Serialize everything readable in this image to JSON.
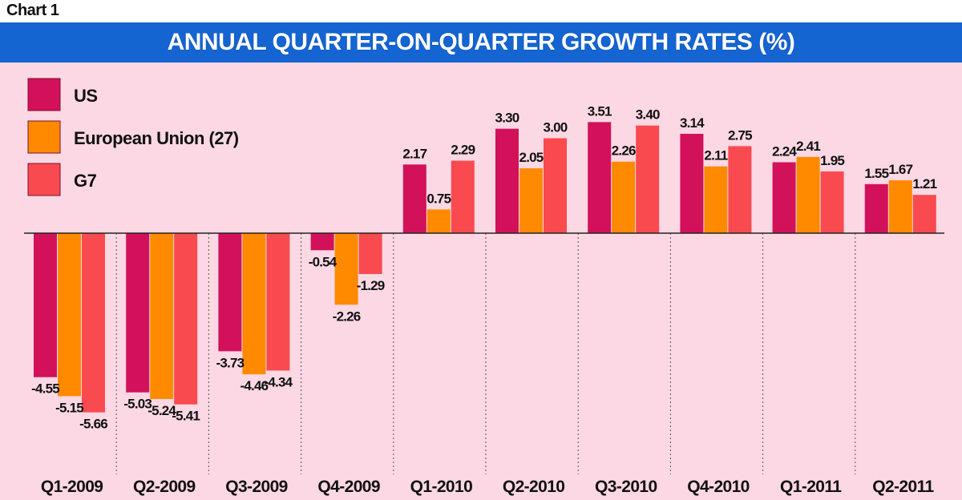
{
  "header": {
    "chart_label": "Chart 1",
    "title": "ANNUAL QUARTER-ON-QUARTER GROWTH RATES (%)"
  },
  "colors": {
    "title_bar": "#1464d2",
    "background": "#fbd8e4",
    "us": "#d3115a",
    "eu": "#ff8a00",
    "g7": "#f94a4f"
  },
  "chart_data": {
    "type": "bar",
    "title": "ANNUAL QUARTER-ON-QUARTER GROWTH RATES (%)",
    "categories": [
      "Q1-2009",
      "Q2-2009",
      "Q3-2009",
      "Q4-2009",
      "Q1-2010",
      "Q2-2010",
      "Q3-2010",
      "Q4-2010",
      "Q1-2011",
      "Q2-2011"
    ],
    "series": [
      {
        "name": "US",
        "color": "#d3115a",
        "values": [
          -4.55,
          -5.03,
          -3.73,
          -0.54,
          2.17,
          3.3,
          3.51,
          3.14,
          2.24,
          1.55
        ],
        "labels": [
          "-4.55",
          "-5.03",
          "-3.73",
          "-0.54",
          "2.17",
          "3.30",
          "3.51",
          "3.14",
          "2.24",
          "1.55"
        ]
      },
      {
        "name": "European Union (27)",
        "color": "#ff8a00",
        "values": [
          -5.15,
          -5.24,
          -4.46,
          -2.26,
          0.75,
          2.05,
          2.26,
          2.11,
          2.41,
          1.67
        ],
        "labels": [
          "-5.15",
          "-5.24",
          "-4.46",
          "-2.26",
          "0.75",
          "2.05",
          "2.26",
          "2.11",
          "2.41",
          "1.67"
        ]
      },
      {
        "name": "G7",
        "color": "#f94a4f",
        "values": [
          -5.66,
          -5.41,
          -4.34,
          -1.29,
          2.29,
          3.0,
          3.4,
          2.75,
          1.95,
          1.21
        ],
        "labels": [
          "-5.66",
          "-5.41",
          "-4.34",
          "-1.29",
          "2.29",
          "3.00",
          "3.40",
          "2.75",
          "1.95",
          "1.21"
        ]
      }
    ],
    "ylim": [
      -6,
      4.2
    ],
    "legend": "top-left",
    "grid": "dashed vertical separators between categories"
  }
}
